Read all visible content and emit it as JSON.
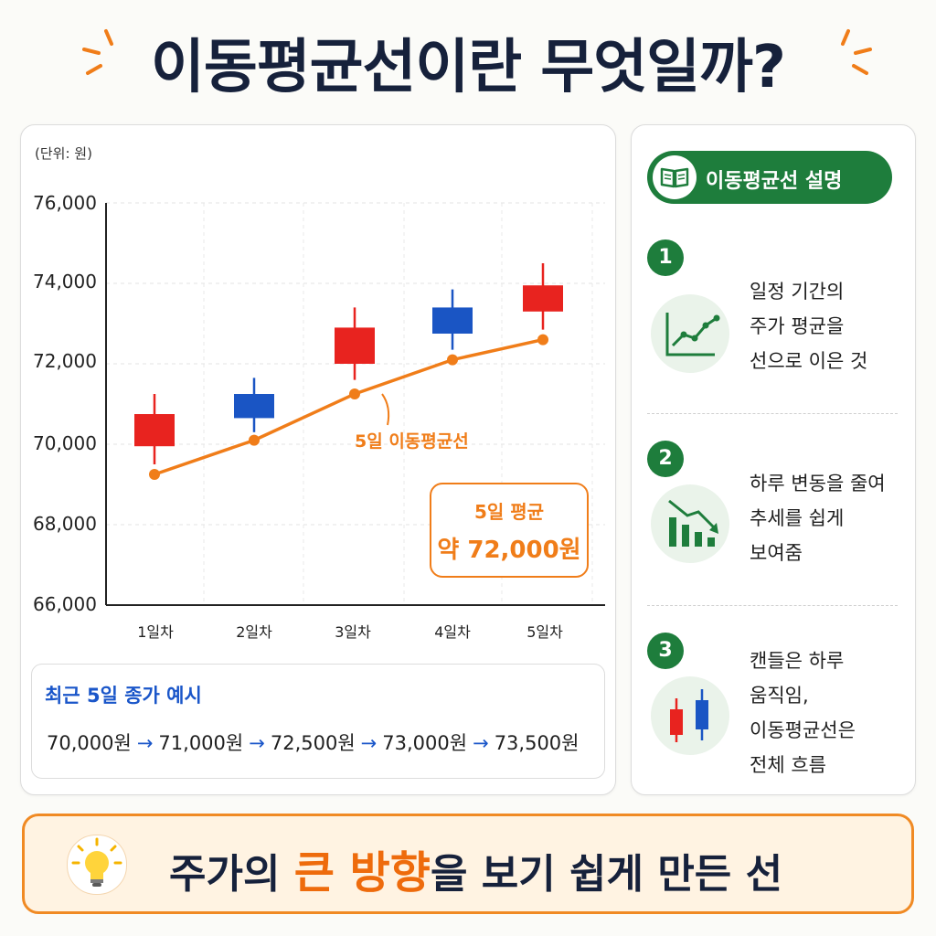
{
  "title": "이동평균선이란 무엇일까?",
  "unit_label": "(단위: 원)",
  "chart_data": {
    "type": "candlestick-line",
    "unit": "원",
    "ylim": [
      66000,
      76000
    ],
    "y_ticks": [
      "76,000",
      "74,000",
      "72,000",
      "70,000",
      "68,000",
      "66,000"
    ],
    "categories": [
      "1일차",
      "2일차",
      "3일차",
      "4일차",
      "5일차"
    ],
    "candles": [
      {
        "open": 70750,
        "close": 69950,
        "high": 71250,
        "low": 69500,
        "color": "red"
      },
      {
        "open": 71250,
        "close": 70650,
        "high": 71650,
        "low": 70300,
        "color": "blue"
      },
      {
        "open": 72000,
        "close": 72900,
        "high": 73400,
        "low": 71600,
        "color": "red"
      },
      {
        "open": 73400,
        "close": 72750,
        "high": 73850,
        "low": 72350,
        "color": "blue"
      },
      {
        "open": 73300,
        "close": 73950,
        "high": 74500,
        "low": 72850,
        "color": "red"
      }
    ],
    "moving_average": {
      "name": "5일 이동평균선",
      "values": [
        69250,
        70100,
        71250,
        72100,
        72600
      ]
    },
    "grid": true
  },
  "avg_box": {
    "title": "5일 평균",
    "value": "약 72,000원"
  },
  "close_example": {
    "title": "최근 5일 종가 예시",
    "prices": [
      "70,000원",
      "71,000원",
      "72,500원",
      "73,000원",
      "73,500원"
    ],
    "arrow": "→"
  },
  "sidebar": {
    "header": "이동평균선 설명",
    "items": [
      {
        "number": "1",
        "lines": [
          "일정 기간의",
          "주가 평균을",
          "선으로 이은 것"
        ]
      },
      {
        "number": "2",
        "lines": [
          "하루 변동을 줄여",
          "추세를 쉽게",
          "보여줌"
        ]
      },
      {
        "number": "3",
        "lines": [
          "캔들은 하루",
          "움직임,",
          "이동평균선은",
          "전체 흐름"
        ]
      }
    ]
  },
  "banner": {
    "pre": "주가의 ",
    "highlight": "큰 방향",
    "post": "을 보기 쉽게 만든 선"
  },
  "colors": {
    "candle_red": "#e8231f",
    "candle_blue": "#1a55c4",
    "ma_line": "#f07d19",
    "green": "#1e7d3c",
    "title": "#16213b"
  }
}
